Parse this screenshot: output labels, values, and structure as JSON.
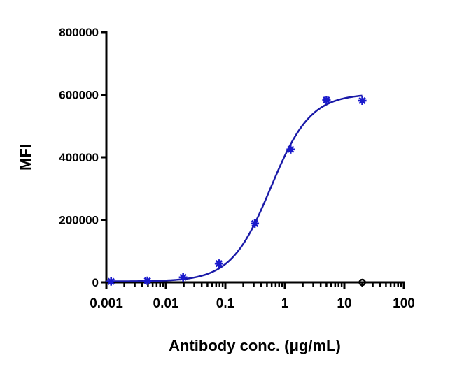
{
  "chart_data": {
    "type": "scatter",
    "title": "",
    "xlabel": "Antibody conc. (μg/mL)",
    "ylabel": "MFI",
    "x_scale": "log",
    "xlim": [
      0.001,
      100
    ],
    "ylim": [
      0,
      800000
    ],
    "x_ticks": [
      "0.001",
      "0.01",
      "0.1",
      "1",
      "10",
      "100"
    ],
    "y_ticks": [
      "0",
      "200000",
      "400000",
      "600000",
      "800000"
    ],
    "grid": false,
    "legend": "none",
    "series": [
      {
        "marker": "asterisk",
        "color": "#1a1acc",
        "x": [
          0.0012,
          0.0049,
          0.0195,
          0.078,
          0.3125,
          1.25,
          5,
          20
        ],
        "y": [
          3000,
          5000,
          16000,
          60000,
          188000,
          425000,
          583000,
          581000
        ]
      },
      {
        "marker": "open-circle",
        "color": "#000000",
        "x": [
          20
        ],
        "y": [
          0
        ]
      }
    ],
    "curve": {
      "model": "4PL",
      "color": "#1a1aa8",
      "bottom": 3000,
      "top": 603000,
      "ec50": 0.58,
      "hill": 1.3,
      "x_range": [
        0.001,
        20
      ]
    }
  }
}
